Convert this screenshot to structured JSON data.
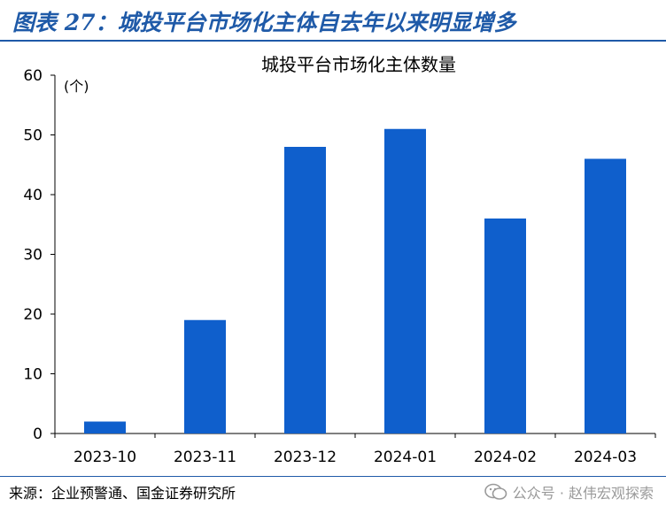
{
  "figure": {
    "label": "图表 27：城投平台市场化主体自去年以来明显增多"
  },
  "chart_data": {
    "type": "bar",
    "title": "城投平台市场化主体数量",
    "unit_label": "(个)",
    "categories": [
      "2023-10",
      "2023-11",
      "2023-12",
      "2024-01",
      "2024-02",
      "2024-03"
    ],
    "values": [
      2,
      19,
      48,
      51,
      36,
      46
    ],
    "ylim": [
      0,
      60
    ],
    "yticks": [
      0,
      10,
      20,
      30,
      40,
      50,
      60
    ],
    "grid": false,
    "bar_color": "#0f5fcc"
  },
  "footer": {
    "source": "来源：企业预警通、国金证券研究所",
    "watermark": "公众号 · 赵伟宏观探索"
  }
}
